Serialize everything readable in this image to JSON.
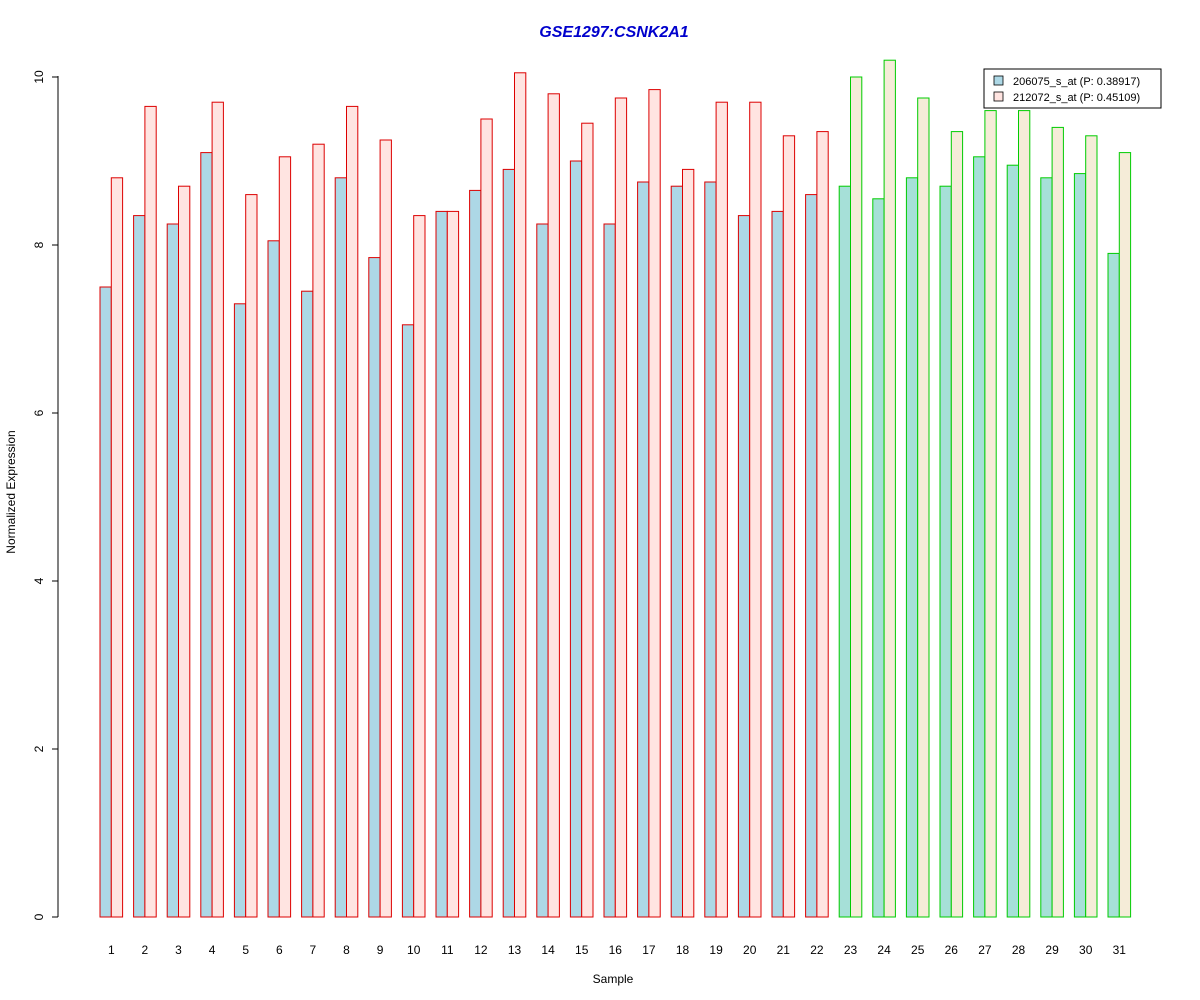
{
  "chart_data": {
    "type": "bar",
    "title": "GSE1297:CSNK2A1",
    "xlabel": "Sample",
    "ylabel": "Normalized Expression",
    "ylim": [
      0,
      10
    ],
    "yticks": [
      0,
      2,
      4,
      6,
      8,
      10
    ],
    "grid": false,
    "legend_position": "top-right",
    "categories": [
      "1",
      "2",
      "3",
      "4",
      "5",
      "6",
      "7",
      "8",
      "9",
      "10",
      "11",
      "12",
      "13",
      "14",
      "15",
      "16",
      "17",
      "18",
      "19",
      "20",
      "21",
      "22",
      "23",
      "24",
      "25",
      "26",
      "27",
      "28",
      "29",
      "30",
      "31"
    ],
    "groups": [
      {
        "samples_from": 1,
        "samples_to": 22,
        "border_color": "#dd0000"
      },
      {
        "samples_from": 23,
        "samples_to": 31,
        "border_color": "#00cc00"
      }
    ],
    "series": [
      {
        "name": "206075_s_at (P: 0.38917)",
        "fill_colors": [
          "#add8e6",
          "#a6e0d8"
        ],
        "values": [
          7.5,
          8.35,
          8.25,
          9.1,
          7.3,
          8.05,
          7.45,
          8.8,
          7.85,
          7.05,
          8.4,
          8.65,
          8.9,
          8.25,
          9.0,
          8.25,
          8.75,
          8.7,
          8.75,
          8.35,
          8.4,
          8.6,
          8.7,
          8.55,
          8.8,
          8.7,
          9.05,
          8.95,
          8.8,
          8.85,
          7.9
        ]
      },
      {
        "name": "212072_s_at (P: 0.45109)",
        "fill_colors": [
          "#ffe4e1",
          "#f5ecd8"
        ],
        "values": [
          8.8,
          9.65,
          8.7,
          9.7,
          8.6,
          9.05,
          9.2,
          9.65,
          9.25,
          8.35,
          8.4,
          9.5,
          10.05,
          9.8,
          9.45,
          9.75,
          9.85,
          8.9,
          9.7,
          9.7,
          9.3,
          9.35,
          10.0,
          10.2,
          9.75,
          9.35,
          9.6,
          9.6,
          9.4,
          9.3,
          9.1
        ]
      }
    ]
  }
}
